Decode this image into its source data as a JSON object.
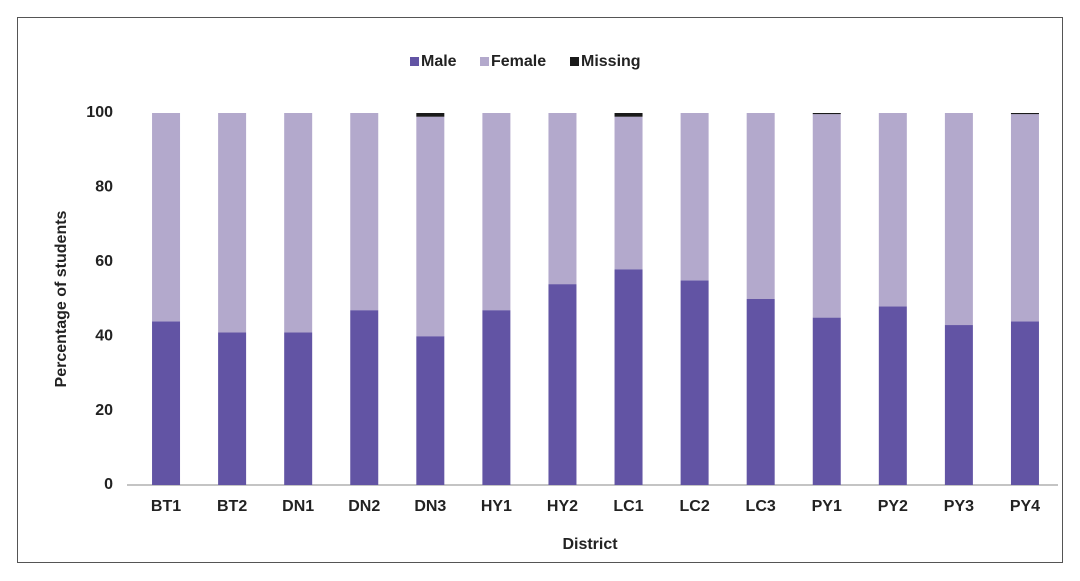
{
  "chart_data": {
    "type": "stacked_bar",
    "x_label": "District",
    "y_label": "Percentage of students",
    "categories": [
      "BT1",
      "BT2",
      "DN1",
      "DN2",
      "DN3",
      "HY1",
      "HY2",
      "LC1",
      "LC2",
      "LC3",
      "PY1",
      "PY2",
      "PY3",
      "PY4"
    ],
    "series": [
      {
        "name": "Male",
        "color": "#6254a4",
        "values": [
          44,
          41,
          41,
          47,
          40,
          47,
          54,
          58,
          55,
          50,
          45,
          48,
          43,
          44
        ]
      },
      {
        "name": "Female",
        "color": "#b3a9cc",
        "values": [
          56,
          59,
          59,
          53,
          59,
          53,
          46,
          41,
          45,
          50,
          54.7,
          52,
          57,
          55.7
        ]
      },
      {
        "name": "Missing",
        "color": "#1a1a1a",
        "values": [
          0,
          0,
          0,
          0,
          1,
          0,
          0,
          1,
          0,
          0,
          0.3,
          0,
          0,
          0.3
        ]
      }
    ],
    "ylim": [
      0,
      100
    ],
    "yticks": [
      0,
      20,
      40,
      60,
      80,
      100
    ],
    "grid": false,
    "legend": "top"
  }
}
